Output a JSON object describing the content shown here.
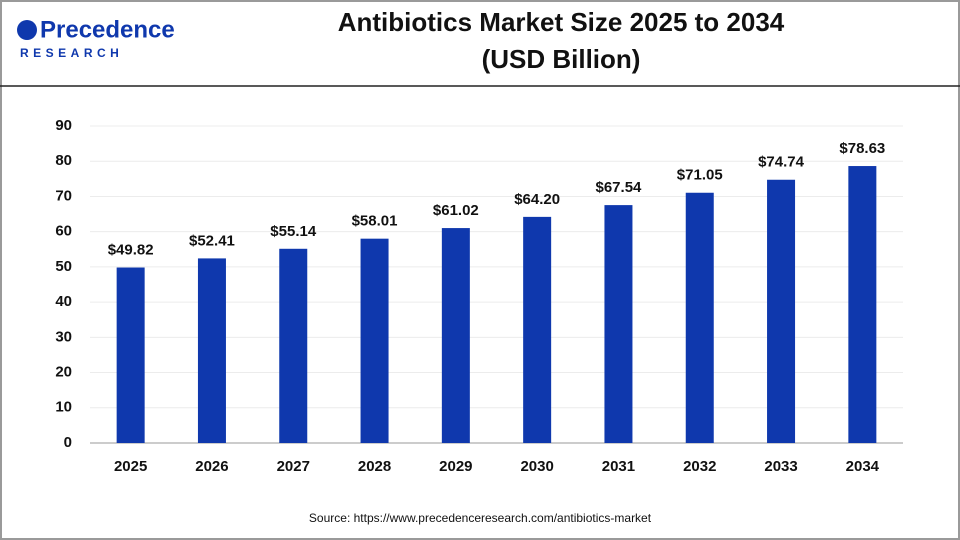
{
  "logo": {
    "name": "Precedence",
    "tagline": "RESEARCH"
  },
  "chart_data": {
    "type": "bar",
    "title": "Antibiotics Market Size 2025 to 2034",
    "subtitle": "(USD Billion)",
    "categories": [
      "2025",
      "2026",
      "2027",
      "2028",
      "2029",
      "2030",
      "2031",
      "2032",
      "2033",
      "2034"
    ],
    "values": [
      49.82,
      52.41,
      55.14,
      58.01,
      61.02,
      64.2,
      67.54,
      71.05,
      74.74,
      78.63
    ],
    "value_labels": [
      "$49.82",
      "$52.41",
      "$55.14",
      "$58.01",
      "$61.02",
      "$64.20",
      "$67.54",
      "$71.05",
      "$74.74",
      "$78.63"
    ],
    "color": "#0f38ad",
    "ylim": [
      0,
      90
    ],
    "yticks": [
      0,
      10,
      20,
      30,
      40,
      50,
      60,
      70,
      80,
      90
    ],
    "grid": true
  },
  "source": "Source: https://www.precedenceresearch.com/antibiotics-market"
}
